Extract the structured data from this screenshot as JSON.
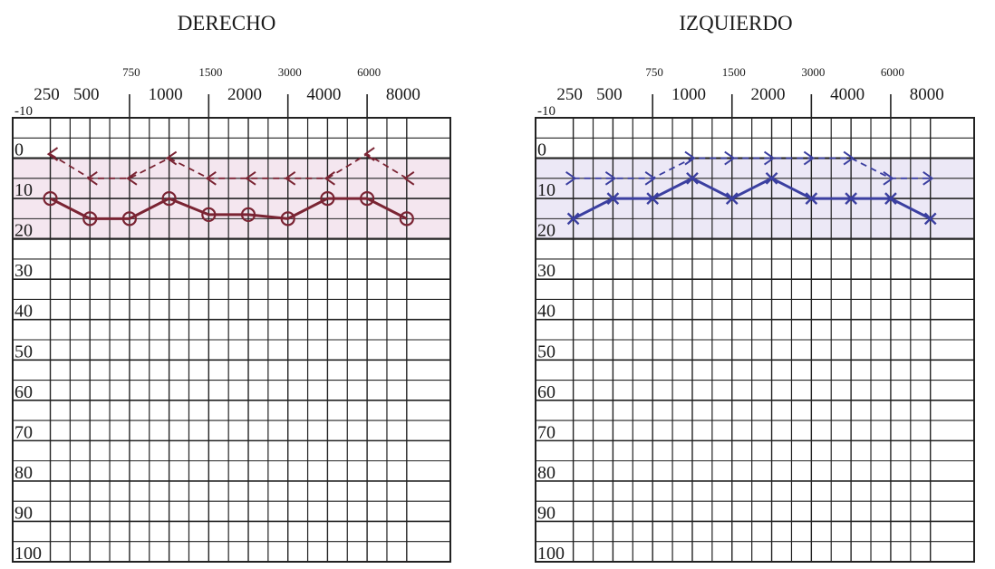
{
  "chart_data": [
    {
      "type": "line",
      "title": "DERECHO",
      "x_major_ticks": [
        "250",
        "500",
        "1000",
        "2000",
        "4000",
        "8000"
      ],
      "x_minor_ticks": [
        "750",
        "1500",
        "3000",
        "6000"
      ],
      "x": [
        250,
        500,
        750,
        1000,
        1500,
        2000,
        3000,
        4000,
        6000,
        8000
      ],
      "y_ticks": [
        "-10",
        "0",
        "10",
        "20",
        "30",
        "40",
        "50",
        "60",
        "70",
        "80",
        "90",
        "100"
      ],
      "ylim": [
        -10,
        100
      ],
      "y_inverted": true,
      "band": [
        0,
        20
      ],
      "colors": {
        "band": "#f4e6ef",
        "line": "#7a2433",
        "grid": "#222222"
      },
      "series": [
        {
          "style": "solid-circle",
          "values": [
            10,
            15,
            15,
            10,
            14,
            14,
            15,
            10,
            10,
            15
          ]
        },
        {
          "style": "dashed-arrow-left",
          "values": [
            -1,
            5,
            5,
            0,
            5,
            5,
            5,
            5,
            -1,
            5
          ]
        }
      ]
    },
    {
      "type": "line",
      "title": "IZQUIERDO",
      "x_major_ticks": [
        "250",
        "500",
        "1000",
        "2000",
        "4000",
        "8000"
      ],
      "x_minor_ticks": [
        "750",
        "1500",
        "3000",
        "6000"
      ],
      "x": [
        250,
        500,
        750,
        1000,
        1500,
        2000,
        3000,
        4000,
        6000,
        8000
      ],
      "y_ticks": [
        "-10",
        "0",
        "10",
        "20",
        "30",
        "40",
        "50",
        "60",
        "70",
        "80",
        "90",
        "100"
      ],
      "ylim": [
        -10,
        100
      ],
      "y_inverted": true,
      "band": [
        0,
        20
      ],
      "colors": {
        "band": "#ece8f6",
        "line": "#3b3fa0",
        "grid": "#222222"
      },
      "series": [
        {
          "style": "solid-x",
          "values": [
            15,
            10,
            10,
            5,
            10,
            5,
            10,
            10,
            10,
            15
          ]
        },
        {
          "style": "dashed-arrow-right",
          "values": [
            5,
            5,
            5,
            0,
            0,
            0,
            0,
            0,
            5,
            5
          ]
        }
      ]
    }
  ]
}
